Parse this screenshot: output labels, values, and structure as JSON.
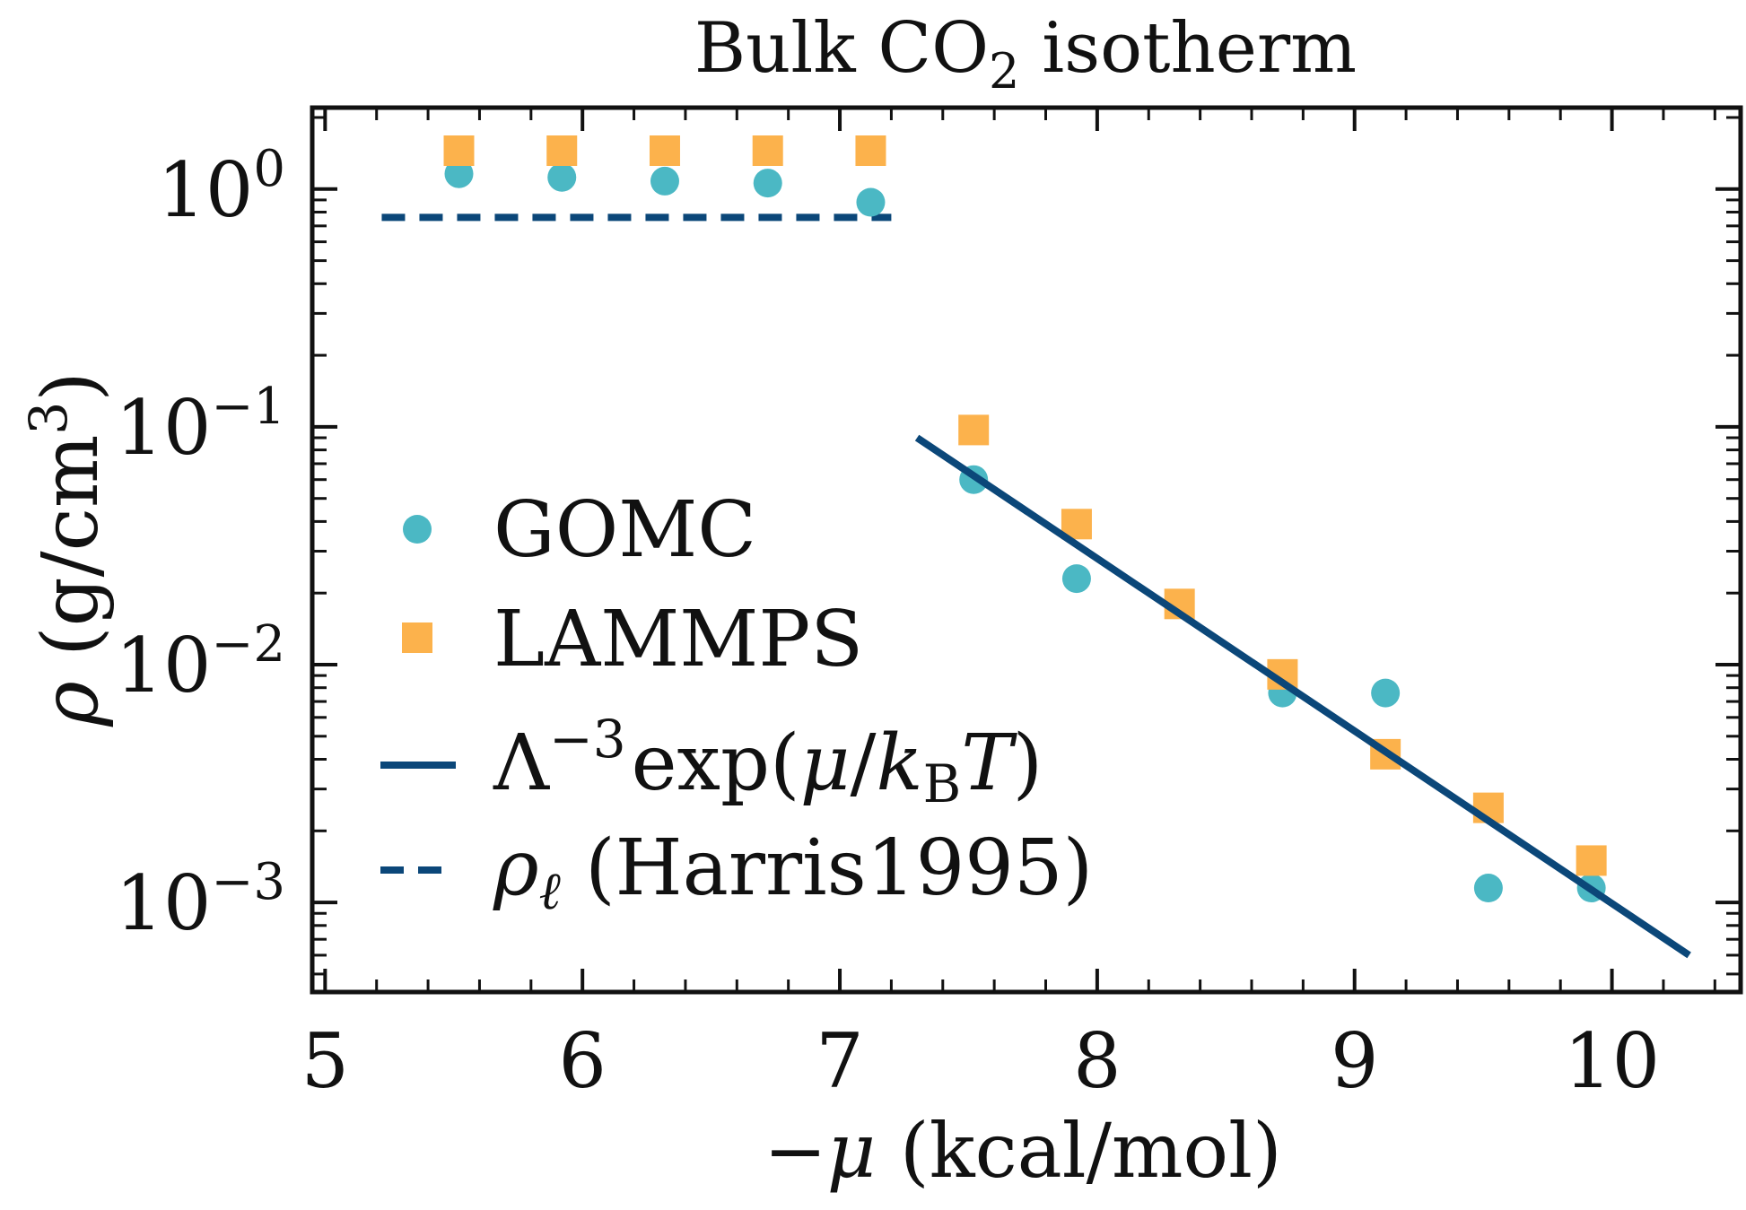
{
  "chart_data": {
    "type": "scatter",
    "title": "Bulk CO₂ isotherm",
    "title_parts": {
      "main": "Bulk CO",
      "sub": "2",
      "tail": " isotherm"
    },
    "xlabel": "−μ (kcal/mol)",
    "xlabel_parts": {
      "minus_mu": "−μ",
      "units": " (kcal/mol)"
    },
    "ylabel": "ρ (g/cm³)",
    "ylabel_parts": {
      "rho": "ρ",
      "units": " (g/cm",
      "exp": "3",
      "close": ")"
    },
    "x_scale": "linear",
    "y_scale": "log",
    "xlim": [
      4.95,
      10.5
    ],
    "ylim": [
      0.00042,
      2.2
    ],
    "x_ticks": [
      5,
      6,
      7,
      8,
      9,
      10
    ],
    "x_tick_labels": [
      "5",
      "6",
      "7",
      "8",
      "9",
      "10"
    ],
    "y_ticks": [
      {
        "value": 1,
        "base": "10",
        "exp": "0"
      },
      {
        "value": 0.1,
        "base": "10",
        "exp": "−1"
      },
      {
        "value": 0.01,
        "base": "10",
        "exp": "−2"
      },
      {
        "value": 0.001,
        "base": "10",
        "exp": "−3"
      }
    ],
    "grid": false,
    "legend_position": "center-left",
    "series": [
      {
        "name": "GOMC",
        "kind": "scatter",
        "marker": "circle",
        "color": "#4BB8C4",
        "points": [
          [
            5.52,
            1.16
          ],
          [
            5.92,
            1.12
          ],
          [
            6.32,
            1.08
          ],
          [
            6.72,
            1.06
          ],
          [
            7.12,
            0.88
          ],
          [
            7.52,
            0.06
          ],
          [
            7.92,
            0.023
          ],
          [
            8.32,
            0.018
          ],
          [
            8.72,
            0.0076
          ],
          [
            9.12,
            0.0076
          ],
          [
            9.52,
            0.00115
          ],
          [
            9.92,
            0.00115
          ]
        ]
      },
      {
        "name": "LAMMPS",
        "kind": "scatter",
        "marker": "square",
        "color": "#FCB24C",
        "points": [
          [
            5.52,
            1.45
          ],
          [
            5.92,
            1.45
          ],
          [
            6.32,
            1.45
          ],
          [
            6.72,
            1.45
          ],
          [
            7.12,
            1.45
          ],
          [
            7.52,
            0.097
          ],
          [
            7.92,
            0.039
          ],
          [
            8.32,
            0.018
          ],
          [
            8.72,
            0.0091
          ],
          [
            9.12,
            0.0042
          ],
          [
            9.52,
            0.0025
          ],
          [
            9.92,
            0.0015
          ]
        ]
      },
      {
        "name": "Λ⁻³exp(μ/k_B T)",
        "label_parts": {
          "lambda": "Λ",
          "exp": "−3",
          "body": "exp(",
          "mu": "μ",
          "slash": "/",
          "k": "k",
          "sub": "B",
          "t": "T",
          "close": ")"
        },
        "kind": "line",
        "style": "solid",
        "color": "#0B4779",
        "points": [
          [
            7.3,
            0.09
          ],
          [
            10.3,
            0.0006
          ]
        ]
      },
      {
        "name": "ρℓ (Harris1995)",
        "label_parts": {
          "rho": "ρ",
          "sub": "ℓ",
          "rest": " (Harris1995)"
        },
        "kind": "line",
        "style": "dashed",
        "color": "#0B4779",
        "points": [
          [
            5.22,
            0.76
          ],
          [
            7.2,
            0.76
          ]
        ]
      }
    ]
  }
}
